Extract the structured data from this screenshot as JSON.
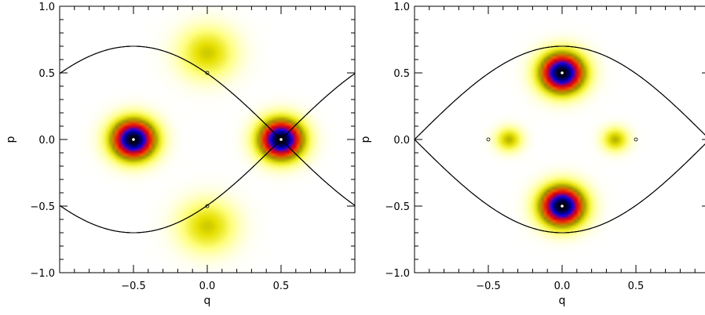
{
  "chart_data": [
    {
      "type": "heatmap",
      "xlabel": "q",
      "ylabel": "p",
      "xlim": [
        -1.0,
        1.0
      ],
      "ylim": [
        -1.0,
        1.0
      ],
      "x_tick_labels": [
        "−0.5",
        "0.0",
        "0.5"
      ],
      "x_tick_values": [
        -0.5,
        0.0,
        0.5
      ],
      "y_tick_labels": [
        "1.0",
        "0.5",
        "0.0",
        "−0.5",
        "−1.0"
      ],
      "y_tick_values": [
        1.0,
        0.5,
        0.0,
        -0.5,
        -1.0
      ],
      "peaks": [
        {
          "q": -0.5,
          "p": 0.0,
          "amplitude": 1.0,
          "width": 0.1
        },
        {
          "q": 0.5,
          "p": 0.0,
          "amplitude": 1.0,
          "width": 0.1
        },
        {
          "q": 0.0,
          "p": 0.65,
          "amplitude": 0.25,
          "width": 0.13
        },
        {
          "q": 0.0,
          "p": -0.65,
          "amplitude": 0.25,
          "width": 0.13
        }
      ],
      "fixed_points": [
        {
          "q": -0.5,
          "p": 0.0,
          "fill": "white"
        },
        {
          "q": 0.5,
          "p": 0.0,
          "fill": "white"
        },
        {
          "q": 0.0,
          "p": 0.5,
          "fill": "hollow"
        },
        {
          "q": 0.0,
          "p": -0.5,
          "fill": "hollow"
        }
      ],
      "curve_shift": 0.0
    },
    {
      "type": "heatmap",
      "xlabel": "q",
      "ylabel": "p",
      "xlim": [
        -1.0,
        1.0
      ],
      "ylim": [
        -1.0,
        1.0
      ],
      "x_tick_labels": [
        "−0.5",
        "0.0",
        "0.5"
      ],
      "x_tick_values": [
        -0.5,
        0.0,
        0.5
      ],
      "y_tick_labels": [
        "1.0",
        "0.5",
        "0.0",
        "−0.5",
        "−1.0"
      ],
      "y_tick_values": [
        1.0,
        0.5,
        0.0,
        -0.5,
        -1.0
      ],
      "peaks": [
        {
          "q": 0.0,
          "p": 0.5,
          "amplitude": 1.0,
          "width": 0.1
        },
        {
          "q": 0.0,
          "p": -0.5,
          "amplitude": 1.0,
          "width": 0.1
        },
        {
          "q": -0.36,
          "p": 0.0,
          "amplitude": 0.28,
          "width": 0.06
        },
        {
          "q": 0.36,
          "p": 0.0,
          "amplitude": 0.28,
          "width": 0.06
        }
      ],
      "fixed_points": [
        {
          "q": 0.0,
          "p": 0.5,
          "fill": "white"
        },
        {
          "q": 0.0,
          "p": -0.5,
          "fill": "white"
        },
        {
          "q": -0.5,
          "p": 0.0,
          "fill": "hollow"
        },
        {
          "q": 0.5,
          "p": 0.0,
          "fill": "hollow"
        }
      ],
      "curve_shift": 0.5
    }
  ],
  "colors": {
    "axes": "#000000",
    "background": "#ffffff",
    "colormap": [
      "#ffffff",
      "#ffff80",
      "#e6e000",
      "#8a8a00",
      "#ff6600",
      "#e00000",
      "#b00050",
      "#0000ff",
      "#000060",
      "#000000"
    ]
  }
}
